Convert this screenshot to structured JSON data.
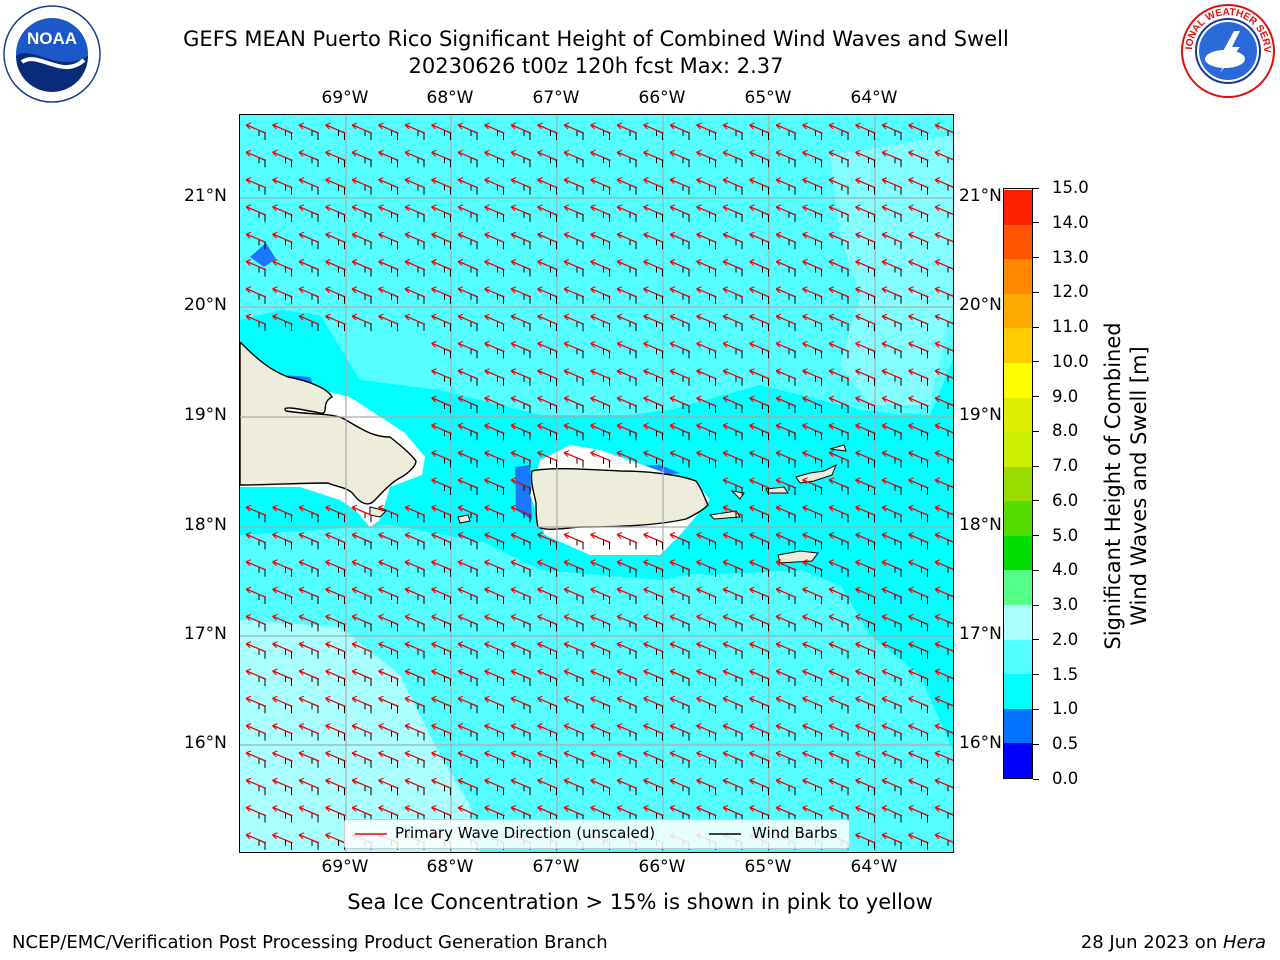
{
  "title": {
    "line1": "GEFS MEAN Puerto Rico Significant Height of Combined Wind Waves and Swell",
    "line2": "20230626 t00z 120h fcst   Max: 2.37"
  },
  "logos": {
    "noaa_text": "NOAA",
    "noaa_ring": "NATIONAL OCEANIC AND ATMOSPHERIC ADMINISTRATION · U.S. DEPARTMENT OF COMMERCE",
    "nws_ring": "NATIONAL WEATHER SERVICE"
  },
  "map": {
    "lon_labels": [
      "69°W",
      "68°W",
      "67°W",
      "66°W",
      "65°W",
      "64°W"
    ],
    "lat_labels": [
      "21°N",
      "20°N",
      "19°N",
      "18°N",
      "17°N",
      "16°N"
    ],
    "lon_extent": [
      -70.0,
      -63.25
    ],
    "lat_extent": [
      15.05,
      21.75
    ]
  },
  "legend": {
    "wave_label": "Primary Wave Direction (unscaled)",
    "barb_label": "Wind Barbs",
    "wave_color": "#ff0000",
    "barb_color": "#000000"
  },
  "colorbar": {
    "label_line1": "Significant Height of Combined",
    "label_line2": "Wind Waves and Swell [m]",
    "ticks": [
      "0.0",
      "0.5",
      "1.0",
      "1.5",
      "2.0",
      "3.0",
      "4.0",
      "5.0",
      "6.0",
      "7.0",
      "8.0",
      "9.0",
      "10.0",
      "11.0",
      "12.0",
      "13.0",
      "14.0",
      "15.0"
    ],
    "colors": [
      "#0000ff",
      "#0073ff",
      "#00ffff",
      "#54ffff",
      "#aaffff",
      "#55ff88",
      "#00dd00",
      "#55dd00",
      "#99dd00",
      "#ccee00",
      "#ddee00",
      "#ffff00",
      "#ffcc00",
      "#ffaa00",
      "#ff8800",
      "#ff5500",
      "#ff2200"
    ]
  },
  "notes": {
    "sea_ice": "Sea Ice Concentration > 15% is shown in pink to yellow"
  },
  "footer": {
    "left": "NCEP/EMC/Verification Post Processing Product Generation Branch",
    "right_prefix": "28 Jun 2023 on ",
    "right_host": "Hera"
  }
}
